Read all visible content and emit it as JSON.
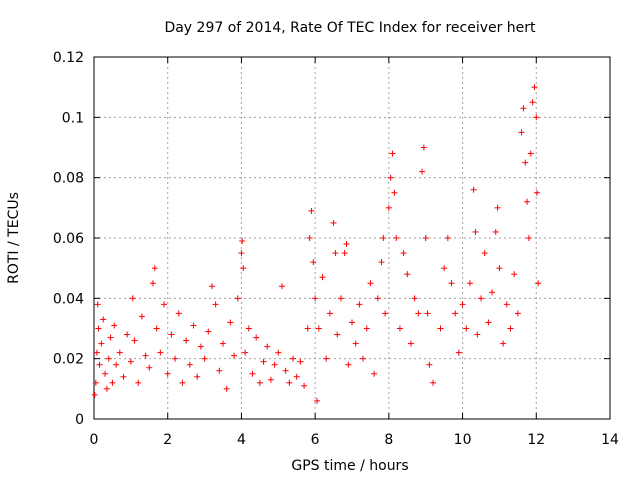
{
  "chart_data": {
    "type": "scatter",
    "title": "Day 297 of 2014, Rate Of TEC Index for receiver hert",
    "xlabel": "GPS time / hours",
    "ylabel": "ROTI / TECUs",
    "xlim": [
      0,
      14
    ],
    "ylim": [
      0,
      0.12
    ],
    "xticks": [
      0,
      2,
      4,
      6,
      8,
      10,
      12,
      14
    ],
    "xtick_labels": [
      "0",
      "2",
      "4",
      "6",
      "8",
      "10",
      "12",
      "14"
    ],
    "yticks": [
      0,
      0.02,
      0.04,
      0.06,
      0.08,
      0.1,
      0.12
    ],
    "ytick_labels": [
      "0",
      "0.02",
      "0.04",
      "0.06",
      "0.08",
      "0.1",
      "0.12"
    ],
    "grid": true,
    "marker": "+",
    "color": "#ff0000",
    "series": [
      {
        "name": "ROTI",
        "points": [
          [
            0.02,
            0.008
          ],
          [
            0.05,
            0.012
          ],
          [
            0.08,
            0.022
          ],
          [
            0.1,
            0.038
          ],
          [
            0.12,
            0.03
          ],
          [
            0.15,
            0.018
          ],
          [
            0.2,
            0.025
          ],
          [
            0.25,
            0.033
          ],
          [
            0.3,
            0.015
          ],
          [
            0.35,
            0.01
          ],
          [
            0.4,
            0.02
          ],
          [
            0.45,
            0.027
          ],
          [
            0.5,
            0.012
          ],
          [
            0.55,
            0.031
          ],
          [
            0.6,
            0.018
          ],
          [
            0.7,
            0.022
          ],
          [
            0.8,
            0.014
          ],
          [
            0.9,
            0.028
          ],
          [
            1.0,
            0.019
          ],
          [
            1.05,
            0.04
          ],
          [
            1.1,
            0.026
          ],
          [
            1.2,
            0.012
          ],
          [
            1.3,
            0.034
          ],
          [
            1.4,
            0.021
          ],
          [
            1.5,
            0.017
          ],
          [
            1.6,
            0.045
          ],
          [
            1.65,
            0.05
          ],
          [
            1.7,
            0.03
          ],
          [
            1.8,
            0.022
          ],
          [
            1.9,
            0.038
          ],
          [
            2.0,
            0.015
          ],
          [
            2.1,
            0.028
          ],
          [
            2.2,
            0.02
          ],
          [
            2.3,
            0.035
          ],
          [
            2.4,
            0.012
          ],
          [
            2.5,
            0.026
          ],
          [
            2.6,
            0.018
          ],
          [
            2.7,
            0.031
          ],
          [
            2.8,
            0.014
          ],
          [
            2.9,
            0.024
          ],
          [
            3.0,
            0.02
          ],
          [
            3.1,
            0.029
          ],
          [
            3.2,
            0.044
          ],
          [
            3.3,
            0.038
          ],
          [
            3.4,
            0.016
          ],
          [
            3.5,
            0.025
          ],
          [
            3.6,
            0.01
          ],
          [
            3.7,
            0.032
          ],
          [
            3.8,
            0.021
          ],
          [
            3.9,
            0.04
          ],
          [
            4.0,
            0.055
          ],
          [
            4.02,
            0.059
          ],
          [
            4.05,
            0.05
          ],
          [
            4.1,
            0.022
          ],
          [
            4.2,
            0.03
          ],
          [
            4.3,
            0.015
          ],
          [
            4.4,
            0.027
          ],
          [
            4.5,
            0.012
          ],
          [
            4.6,
            0.019
          ],
          [
            4.7,
            0.024
          ],
          [
            4.8,
            0.013
          ],
          [
            4.9,
            0.018
          ],
          [
            5.0,
            0.022
          ],
          [
            5.1,
            0.044
          ],
          [
            5.2,
            0.016
          ],
          [
            5.3,
            0.012
          ],
          [
            5.4,
            0.02
          ],
          [
            5.5,
            0.014
          ],
          [
            5.6,
            0.019
          ],
          [
            5.7,
            0.011
          ],
          [
            5.8,
            0.03
          ],
          [
            5.85,
            0.06
          ],
          [
            5.9,
            0.069
          ],
          [
            5.95,
            0.052
          ],
          [
            6.0,
            0.04
          ],
          [
            6.05,
            0.006
          ],
          [
            6.1,
            0.03
          ],
          [
            6.2,
            0.047
          ],
          [
            6.3,
            0.02
          ],
          [
            6.4,
            0.035
          ],
          [
            6.5,
            0.065
          ],
          [
            6.55,
            0.055
          ],
          [
            6.6,
            0.028
          ],
          [
            6.7,
            0.04
          ],
          [
            6.8,
            0.055
          ],
          [
            6.85,
            0.058
          ],
          [
            6.9,
            0.018
          ],
          [
            7.0,
            0.032
          ],
          [
            7.1,
            0.025
          ],
          [
            7.2,
            0.038
          ],
          [
            7.3,
            0.02
          ],
          [
            7.4,
            0.03
          ],
          [
            7.5,
            0.045
          ],
          [
            7.6,
            0.015
          ],
          [
            7.7,
            0.04
          ],
          [
            7.8,
            0.052
          ],
          [
            7.85,
            0.06
          ],
          [
            7.9,
            0.035
          ],
          [
            8.0,
            0.07
          ],
          [
            8.05,
            0.08
          ],
          [
            8.1,
            0.088
          ],
          [
            8.15,
            0.075
          ],
          [
            8.2,
            0.06
          ],
          [
            8.3,
            0.03
          ],
          [
            8.4,
            0.055
          ],
          [
            8.5,
            0.048
          ],
          [
            8.6,
            0.025
          ],
          [
            8.7,
            0.04
          ],
          [
            8.8,
            0.035
          ],
          [
            8.9,
            0.082
          ],
          [
            8.95,
            0.09
          ],
          [
            9.0,
            0.06
          ],
          [
            9.05,
            0.035
          ],
          [
            9.1,
            0.018
          ],
          [
            9.2,
            0.012
          ],
          [
            9.4,
            0.03
          ],
          [
            9.5,
            0.05
          ],
          [
            9.6,
            0.06
          ],
          [
            9.7,
            0.045
          ],
          [
            9.8,
            0.035
          ],
          [
            9.9,
            0.022
          ],
          [
            10.0,
            0.038
          ],
          [
            10.1,
            0.03
          ],
          [
            10.2,
            0.045
          ],
          [
            10.3,
            0.076
          ],
          [
            10.35,
            0.062
          ],
          [
            10.4,
            0.028
          ],
          [
            10.5,
            0.04
          ],
          [
            10.6,
            0.055
          ],
          [
            10.7,
            0.032
          ],
          [
            10.8,
            0.042
          ],
          [
            10.9,
            0.062
          ],
          [
            10.95,
            0.07
          ],
          [
            11.0,
            0.05
          ],
          [
            11.1,
            0.025
          ],
          [
            11.2,
            0.038
          ],
          [
            11.3,
            0.03
          ],
          [
            11.4,
            0.048
          ],
          [
            11.5,
            0.035
          ],
          [
            11.6,
            0.095
          ],
          [
            11.65,
            0.103
          ],
          [
            11.7,
            0.085
          ],
          [
            11.75,
            0.072
          ],
          [
            11.8,
            0.06
          ],
          [
            11.85,
            0.088
          ],
          [
            11.9,
            0.105
          ],
          [
            11.95,
            0.11
          ],
          [
            12.0,
            0.1
          ],
          [
            12.02,
            0.075
          ],
          [
            12.05,
            0.045
          ]
        ]
      }
    ]
  }
}
